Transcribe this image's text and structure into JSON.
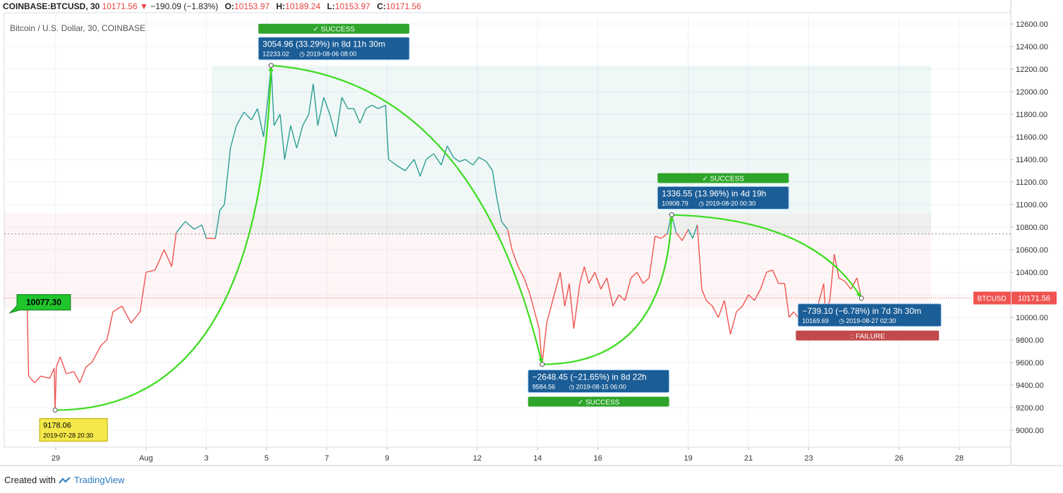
{
  "header": {
    "symbol": "COINBASE:BTCUSD, 30",
    "last": "10171.56",
    "change": "−190.09 (−1.83%)",
    "open_label": "O:",
    "open": "10153.97",
    "high_label": "H:",
    "high": "10189.24",
    "low_label": "L:",
    "low": "10153.97",
    "close_label": "C:",
    "close": "10171.56"
  },
  "footer": {
    "created_with": "Created with",
    "brand": "TradingView"
  },
  "colors": {
    "up": "#2a9d92",
    "down": "#ef5350",
    "arrow": "#3cdc1e",
    "success": "#2ea52a",
    "failure": "#c24a4a",
    "box": "#1b5d96"
  },
  "chart_data": {
    "type": "line",
    "title": "Bitcoin / U.S. Dollar, 30, COINBASE",
    "ylim": [
      8850,
      12700
    ],
    "y_ticks": [
      9000,
      9200,
      9400,
      9600,
      9800,
      10000,
      10200,
      10400,
      10600,
      10800,
      11000,
      11200,
      11400,
      11600,
      11800,
      12000,
      12200,
      12400,
      12600
    ],
    "y_tick_labels": [
      "9000.00",
      "9200.00",
      "9400.00",
      "9600.00",
      "9800.00",
      "10000.00",
      "10200.00",
      "10400.00",
      "10600.00",
      "10800.00",
      "11000.00",
      "11200.00",
      "11400.00",
      "11600.00",
      "11800.00",
      "12000.00",
      "12200.00",
      "12400.00",
      "12600.00"
    ],
    "x_ticks": [
      {
        "label": "29",
        "day": 1
      },
      {
        "label": "Aug",
        "day": 4
      },
      {
        "label": "3",
        "day": 6
      },
      {
        "label": "5",
        "day": 8
      },
      {
        "label": "7",
        "day": 10
      },
      {
        "label": "9",
        "day": 12
      },
      {
        "label": "12",
        "day": 15
      },
      {
        "label": "14",
        "day": 17
      },
      {
        "label": "16",
        "day": 19
      },
      {
        "label": "19",
        "day": 22
      },
      {
        "label": "21",
        "day": 24
      },
      {
        "label": "23",
        "day": 26
      },
      {
        "label": "26",
        "day": 29
      },
      {
        "label": "28",
        "day": 31
      }
    ],
    "reference_line": 10077.3,
    "reference_label": "10077.30",
    "dotted_level": 10740,
    "last_price": 10171.56,
    "last_price_label": "10171.56",
    "series_label": "BTCUSD",
    "series": [
      {
        "day": -0.1,
        "value": 10077
      },
      {
        "day": 0.05,
        "value": 10130
      },
      {
        "day": 0.1,
        "value": 9480
      },
      {
        "day": 0.3,
        "value": 9420
      },
      {
        "day": 0.5,
        "value": 9480
      },
      {
        "day": 0.8,
        "value": 9460
      },
      {
        "day": 0.95,
        "value": 9550
      },
      {
        "day": 0.98,
        "value": 9178
      },
      {
        "day": 1.02,
        "value": 9560
      },
      {
        "day": 1.15,
        "value": 9650
      },
      {
        "day": 1.35,
        "value": 9500
      },
      {
        "day": 1.6,
        "value": 9520
      },
      {
        "day": 1.8,
        "value": 9420
      },
      {
        "day": 2.0,
        "value": 9560
      },
      {
        "day": 2.2,
        "value": 9600
      },
      {
        "day": 2.5,
        "value": 9750
      },
      {
        "day": 2.7,
        "value": 9800
      },
      {
        "day": 2.9,
        "value": 10050
      },
      {
        "day": 3.2,
        "value": 10100
      },
      {
        "day": 3.5,
        "value": 9950
      },
      {
        "day": 3.8,
        "value": 10050
      },
      {
        "day": 4.0,
        "value": 10400
      },
      {
        "day": 4.3,
        "value": 10420
      },
      {
        "day": 4.6,
        "value": 10600
      },
      {
        "day": 4.85,
        "value": 10450
      },
      {
        "day": 5.0,
        "value": 10750
      },
      {
        "day": 5.3,
        "value": 10850
      },
      {
        "day": 5.6,
        "value": 10780
      },
      {
        "day": 5.85,
        "value": 10820
      },
      {
        "day": 6.0,
        "value": 10700
      },
      {
        "day": 6.3,
        "value": 10700
      },
      {
        "day": 6.45,
        "value": 10950
      },
      {
        "day": 6.6,
        "value": 11000
      },
      {
        "day": 6.8,
        "value": 11500
      },
      {
        "day": 7.0,
        "value": 11700
      },
      {
        "day": 7.25,
        "value": 11820
      },
      {
        "day": 7.5,
        "value": 11750
      },
      {
        "day": 7.7,
        "value": 11850
      },
      {
        "day": 7.9,
        "value": 11600
      },
      {
        "day": 8.05,
        "value": 11950
      },
      {
        "day": 8.15,
        "value": 12233
      },
      {
        "day": 8.25,
        "value": 11700
      },
      {
        "day": 8.45,
        "value": 11800
      },
      {
        "day": 8.6,
        "value": 11400
      },
      {
        "day": 8.8,
        "value": 11700
      },
      {
        "day": 9.0,
        "value": 11500
      },
      {
        "day": 9.2,
        "value": 11700
      },
      {
        "day": 9.4,
        "value": 11800
      },
      {
        "day": 9.55,
        "value": 12070
      },
      {
        "day": 9.7,
        "value": 11700
      },
      {
        "day": 9.9,
        "value": 11950
      },
      {
        "day": 10.1,
        "value": 11800
      },
      {
        "day": 10.3,
        "value": 11600
      },
      {
        "day": 10.5,
        "value": 11950
      },
      {
        "day": 10.7,
        "value": 11850
      },
      {
        "day": 10.9,
        "value": 11850
      },
      {
        "day": 11.1,
        "value": 11720
      },
      {
        "day": 11.3,
        "value": 11850
      },
      {
        "day": 11.5,
        "value": 11880
      },
      {
        "day": 11.7,
        "value": 11850
      },
      {
        "day": 11.95,
        "value": 11880
      },
      {
        "day": 12.05,
        "value": 11400
      },
      {
        "day": 12.3,
        "value": 11350
      },
      {
        "day": 12.6,
        "value": 11300
      },
      {
        "day": 12.9,
        "value": 11400
      },
      {
        "day": 13.1,
        "value": 11250
      },
      {
        "day": 13.3,
        "value": 11400
      },
      {
        "day": 13.55,
        "value": 11450
      },
      {
        "day": 13.8,
        "value": 11350
      },
      {
        "day": 14.0,
        "value": 11520
      },
      {
        "day": 14.2,
        "value": 11420
      },
      {
        "day": 14.4,
        "value": 11380
      },
      {
        "day": 14.6,
        "value": 11400
      },
      {
        "day": 14.85,
        "value": 11350
      },
      {
        "day": 15.05,
        "value": 11420
      },
      {
        "day": 15.3,
        "value": 11380
      },
      {
        "day": 15.5,
        "value": 11300
      },
      {
        "day": 15.65,
        "value": 11050
      },
      {
        "day": 15.8,
        "value": 10850
      },
      {
        "day": 16.0,
        "value": 10780
      },
      {
        "day": 16.15,
        "value": 10600
      },
      {
        "day": 16.35,
        "value": 10450
      },
      {
        "day": 16.55,
        "value": 10350
      },
      {
        "day": 16.75,
        "value": 10200
      },
      {
        "day": 16.9,
        "value": 10050
      },
      {
        "day": 17.05,
        "value": 9900
      },
      {
        "day": 17.15,
        "value": 9584
      },
      {
        "day": 17.3,
        "value": 9950
      },
      {
        "day": 17.45,
        "value": 10100
      },
      {
        "day": 17.6,
        "value": 10250
      },
      {
        "day": 17.75,
        "value": 10400
      },
      {
        "day": 17.9,
        "value": 10100
      },
      {
        "day": 18.05,
        "value": 10300
      },
      {
        "day": 18.2,
        "value": 9900
      },
      {
        "day": 18.4,
        "value": 10300
      },
      {
        "day": 18.55,
        "value": 10450
      },
      {
        "day": 18.7,
        "value": 10300
      },
      {
        "day": 18.9,
        "value": 10400
      },
      {
        "day": 19.1,
        "value": 10250
      },
      {
        "day": 19.3,
        "value": 10350
      },
      {
        "day": 19.5,
        "value": 10100
      },
      {
        "day": 19.7,
        "value": 10200
      },
      {
        "day": 19.9,
        "value": 10150
      },
      {
        "day": 20.1,
        "value": 10350
      },
      {
        "day": 20.3,
        "value": 10400
      },
      {
        "day": 20.5,
        "value": 10300
      },
      {
        "day": 20.7,
        "value": 10350
      },
      {
        "day": 20.9,
        "value": 10720
      },
      {
        "day": 21.1,
        "value": 10700
      },
      {
        "day": 21.3,
        "value": 10740
      },
      {
        "day": 21.45,
        "value": 10909
      },
      {
        "day": 21.6,
        "value": 10750
      },
      {
        "day": 21.8,
        "value": 10680
      },
      {
        "day": 22.0,
        "value": 10780
      },
      {
        "day": 22.15,
        "value": 10700
      },
      {
        "day": 22.3,
        "value": 10820
      },
      {
        "day": 22.45,
        "value": 10250
      },
      {
        "day": 22.6,
        "value": 10150
      },
      {
        "day": 22.8,
        "value": 10100
      },
      {
        "day": 23.0,
        "value": 10000
      },
      {
        "day": 23.2,
        "value": 10150
      },
      {
        "day": 23.4,
        "value": 9850
      },
      {
        "day": 23.6,
        "value": 10050
      },
      {
        "day": 23.8,
        "value": 10100
      },
      {
        "day": 24.0,
        "value": 10200
      },
      {
        "day": 24.2,
        "value": 10150
      },
      {
        "day": 24.4,
        "value": 10250
      },
      {
        "day": 24.6,
        "value": 10400
      },
      {
        "day": 24.8,
        "value": 10420
      },
      {
        "day": 25.0,
        "value": 10300
      },
      {
        "day": 25.2,
        "value": 10300
      },
      {
        "day": 25.35,
        "value": 10000
      },
      {
        "day": 25.5,
        "value": 10050
      },
      {
        "day": 25.7,
        "value": 9980
      },
      {
        "day": 25.9,
        "value": 10120
      },
      {
        "day": 26.1,
        "value": 10050
      },
      {
        "day": 26.3,
        "value": 10100
      },
      {
        "day": 26.5,
        "value": 10300
      },
      {
        "day": 26.55,
        "value": 10050
      },
      {
        "day": 26.7,
        "value": 10150
      },
      {
        "day": 26.85,
        "value": 10560
      },
      {
        "day": 27.0,
        "value": 10350
      },
      {
        "day": 27.2,
        "value": 10320
      },
      {
        "day": 27.4,
        "value": 10250
      },
      {
        "day": 27.6,
        "value": 10350
      },
      {
        "day": 27.75,
        "value": 10171
      }
    ],
    "annotations": [
      {
        "from_day": 0.98,
        "from_value": 9178,
        "to_day": 8.15,
        "to_value": 12233,
        "main": "3054.96 (33.29%) in 8d 11h 30m",
        "price": "12233.02",
        "date": "2019-08-06  08:00",
        "status": "SUCCESS",
        "placement": "above"
      },
      {
        "from_day": 8.15,
        "from_value": 12233,
        "to_day": 17.15,
        "to_value": 9584,
        "main": "−2648.45 (−21.65%) in 8d 22h",
        "price": "9584.56",
        "date": "2019-08-15  06:00",
        "status": "SUCCESS",
        "placement": "below"
      },
      {
        "from_day": 17.15,
        "from_value": 9584,
        "to_day": 21.45,
        "to_value": 10909,
        "main": "1336.55 (13.96%) in 4d 19h",
        "price": "10908.79",
        "date": "2019-08-20  00:30",
        "status": "SUCCESS",
        "placement": "above"
      },
      {
        "from_day": 21.45,
        "from_value": 10909,
        "to_day": 27.75,
        "to_value": 10170,
        "main": "−739.10 (−6.78%) in 7d 3h 30m",
        "price": "10169.69",
        "date": "2019-08-27  02:30",
        "status": "FAILURE",
        "placement": "below"
      }
    ],
    "start_label": {
      "price": "9178.06",
      "date": "2019-07-28 20:30"
    }
  }
}
